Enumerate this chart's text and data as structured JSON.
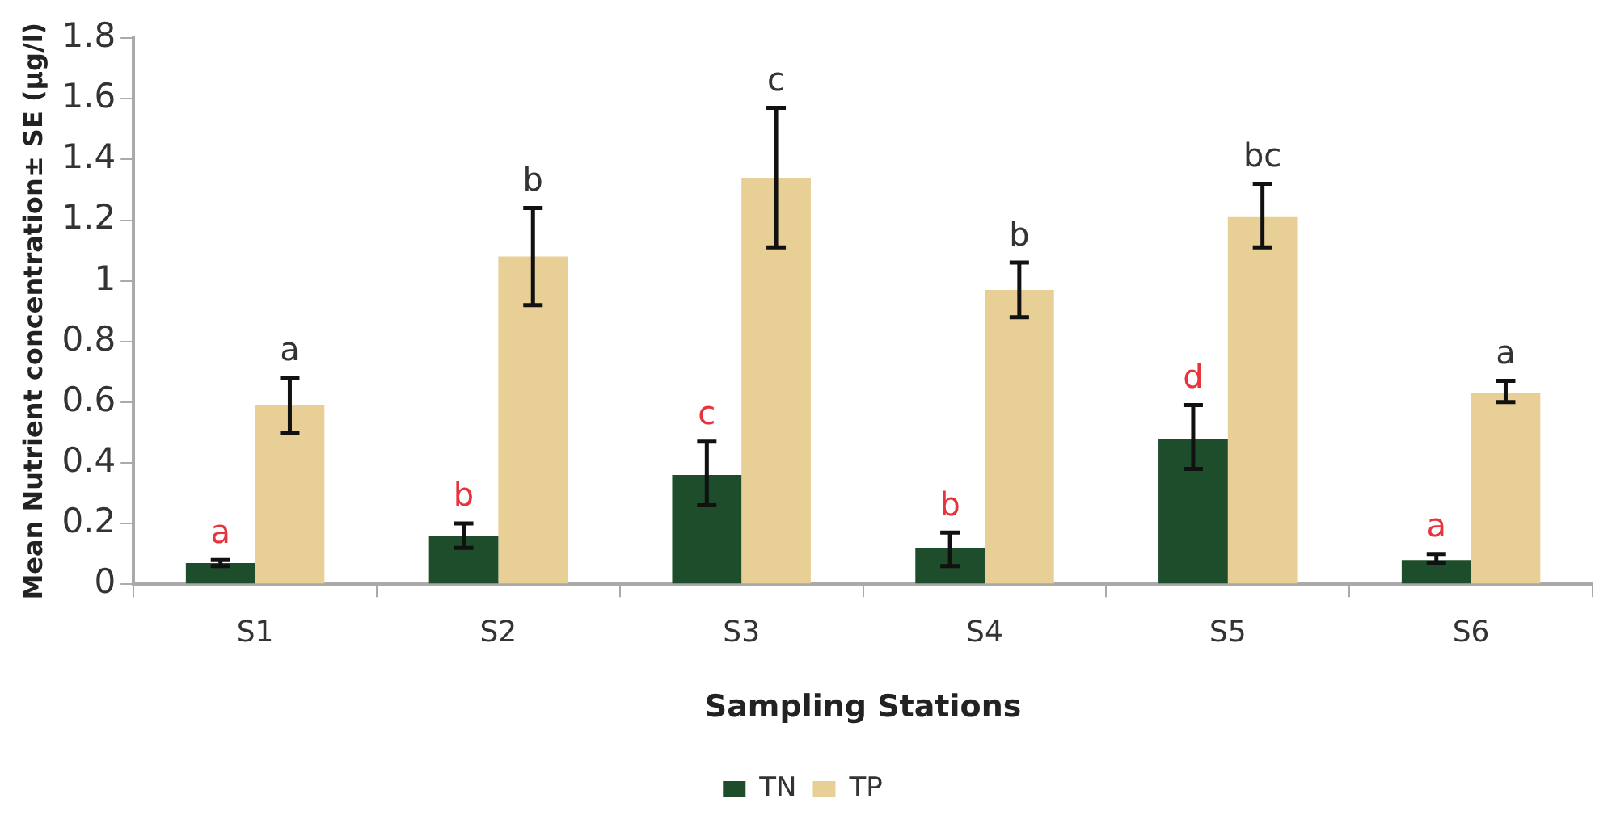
{
  "chart_data": {
    "type": "bar",
    "xlabel": "Sampling Stations",
    "ylabel": "Mean Nutrient concentration± SE (µg/l)",
    "categories": [
      "S1",
      "S2",
      "S3",
      "S4",
      "S5",
      "S6"
    ],
    "series": [
      {
        "name": "TN",
        "color": "#1e4d2b",
        "values": [
          0.07,
          0.16,
          0.36,
          0.12,
          0.48,
          0.08
        ],
        "errors": [
          [
            0.06,
            0.08
          ],
          [
            0.12,
            0.2
          ],
          [
            0.26,
            0.47
          ],
          [
            0.06,
            0.17
          ],
          [
            0.38,
            0.59
          ],
          [
            0.07,
            0.1
          ]
        ],
        "value_labels": [
          "a",
          "b",
          "c",
          "b",
          "d",
          "a"
        ]
      },
      {
        "name": "TP",
        "color": "#e8cf95",
        "values": [
          0.59,
          1.08,
          1.34,
          0.97,
          1.21,
          0.63
        ],
        "errors": [
          [
            0.5,
            0.68
          ],
          [
            0.92,
            1.24
          ],
          [
            1.11,
            1.57
          ],
          [
            0.88,
            1.06
          ],
          [
            1.11,
            1.32
          ],
          [
            0.6,
            0.67
          ]
        ],
        "value_labels": [
          "a",
          "b",
          "c",
          "b",
          "bc",
          "a"
        ]
      }
    ],
    "ylim": [
      0,
      1.8
    ],
    "yticks": [
      0,
      0.2,
      0.4,
      0.6,
      0.8,
      1,
      1.2,
      1.4,
      1.6,
      1.8
    ],
    "grid": false,
    "legend": "bottom"
  }
}
